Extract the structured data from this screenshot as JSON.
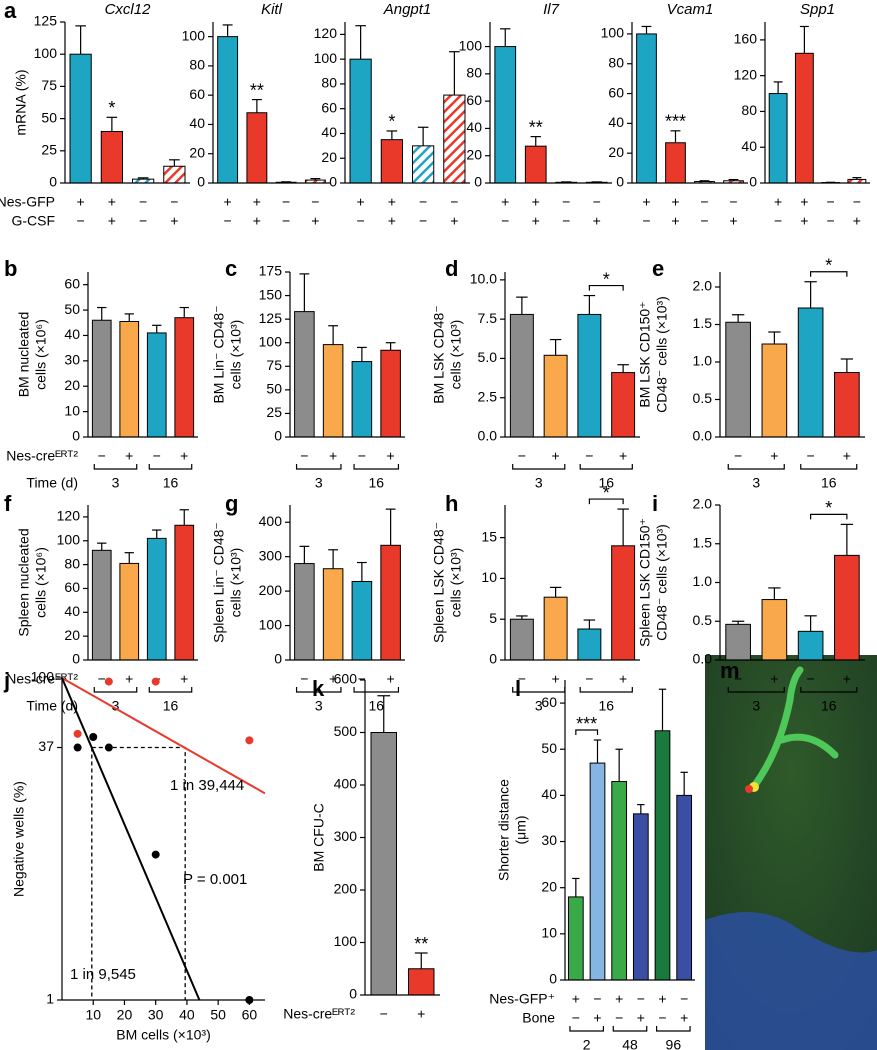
{
  "chart_data": [
    {
      "type": "bar",
      "panel": "a",
      "title": "Cxcl12",
      "ylabel": [
        "mRNA (%)"
      ],
      "values": [
        100,
        40,
        3,
        13
      ],
      "errors": [
        22,
        11,
        1,
        5
      ],
      "colors": [
        "#1ea5c4",
        "#e8392b",
        "#1ea5c4",
        "#e8392b"
      ],
      "hatch": [
        false,
        false,
        true,
        true
      ],
      "ylim": [
        0,
        125
      ],
      "yticks": [
        0,
        25,
        50,
        75,
        100,
        125
      ],
      "annotations": [
        {
          "text": "*",
          "index": 1
        }
      ],
      "rows": [
        {
          "label": "Nes-GFP",
          "signs": [
            "+",
            "+",
            "−",
            "−"
          ]
        },
        {
          "label": "G-CSF",
          "signs": [
            "−",
            "+",
            "−",
            "+"
          ]
        }
      ]
    },
    {
      "type": "bar",
      "title": "Kitl",
      "values": [
        100,
        48,
        0.5,
        2
      ],
      "errors": [
        8,
        9,
        0.3,
        1
      ],
      "colors": [
        "#1ea5c4",
        "#e8392b",
        "#1ea5c4",
        "#e8392b"
      ],
      "hatch": [
        false,
        false,
        true,
        true
      ],
      "ylim": [
        0,
        110
      ],
      "yticks": [
        0,
        20,
        40,
        60,
        80,
        100
      ],
      "annotations": [
        {
          "text": "**",
          "index": 1
        }
      ],
      "rows": [
        {
          "signs": [
            "+",
            "+",
            "−",
            "−"
          ]
        },
        {
          "signs": [
            "−",
            "+",
            "−",
            "+"
          ]
        }
      ]
    },
    {
      "type": "bar",
      "title": "Angpt1",
      "values": [
        100,
        35,
        30,
        71
      ],
      "errors": [
        27,
        7,
        15,
        35
      ],
      "colors": [
        "#1ea5c4",
        "#e8392b",
        "#1ea5c4",
        "#e8392b"
      ],
      "hatch": [
        false,
        false,
        true,
        true
      ],
      "ylim": [
        0,
        130
      ],
      "yticks": [
        0,
        20,
        40,
        60,
        80,
        100,
        120
      ],
      "annotations": [
        {
          "text": "*",
          "index": 1
        }
      ],
      "rows": [
        {
          "signs": [
            "+",
            "+",
            "−",
            "−"
          ]
        },
        {
          "signs": [
            "−",
            "+",
            "−",
            "+"
          ]
        }
      ]
    },
    {
      "type": "bar",
      "title": "Il7",
      "values": [
        100,
        27,
        0.5,
        0.5
      ],
      "errors": [
        13,
        7,
        0.3,
        0.3
      ],
      "colors": [
        "#1ea5c4",
        "#e8392b",
        "#1ea5c4",
        "#e8392b"
      ],
      "hatch": [
        false,
        false,
        true,
        true
      ],
      "ylim": [
        0,
        118
      ],
      "yticks": [
        0,
        20,
        40,
        60,
        80,
        100
      ],
      "annotations": [
        {
          "text": "**",
          "index": 1
        }
      ],
      "rows": [
        {
          "signs": [
            "+",
            "+",
            "−",
            "−"
          ]
        },
        {
          "signs": [
            "−",
            "+",
            "−",
            "+"
          ]
        }
      ]
    },
    {
      "type": "bar",
      "title": "Vcam1",
      "values": [
        100,
        27,
        1,
        1.5
      ],
      "errors": [
        5,
        8,
        0.5,
        0.8
      ],
      "colors": [
        "#1ea5c4",
        "#e8392b",
        "#1ea5c4",
        "#e8392b"
      ],
      "hatch": [
        false,
        false,
        true,
        true
      ],
      "ylim": [
        0,
        108
      ],
      "yticks": [
        0,
        20,
        40,
        60,
        80,
        100
      ],
      "annotations": [
        {
          "text": "***",
          "index": 1
        }
      ],
      "rows": [
        {
          "signs": [
            "+",
            "+",
            "−",
            "−"
          ]
        },
        {
          "signs": [
            "−",
            "+",
            "−",
            "+"
          ]
        }
      ]
    },
    {
      "type": "bar",
      "title": "Spp1",
      "values": [
        100,
        145,
        0.5,
        4
      ],
      "errors": [
        13,
        30,
        0.3,
        2
      ],
      "colors": [
        "#1ea5c4",
        "#e8392b",
        "#1ea5c4",
        "#e8392b"
      ],
      "hatch": [
        false,
        false,
        true,
        true
      ],
      "ylim": [
        0,
        180
      ],
      "yticks": [
        0,
        40,
        80,
        120,
        160
      ],
      "rows": [
        {
          "signs": [
            "+",
            "+",
            "−",
            "−"
          ]
        },
        {
          "signs": [
            "−",
            "+",
            "−",
            "+"
          ]
        }
      ]
    },
    {
      "type": "bar",
      "panel": "b",
      "ylabel": [
        "BM nucleated",
        "cells (×10⁶)"
      ],
      "values": [
        46,
        45.5,
        41,
        47
      ],
      "errors": [
        5,
        3,
        3,
        4
      ],
      "colors": [
        "#8c8c8c",
        "#f9a94b",
        "#1ea5c4",
        "#e8392b"
      ],
      "ylim": [
        0,
        65
      ],
      "yticks": [
        0,
        10,
        20,
        30,
        40,
        50,
        60
      ],
      "rows": [
        {
          "label": "Nes-creᴱᴿᵀ²",
          "signs": [
            "−",
            "+",
            "−",
            "+"
          ]
        }
      ],
      "group_title": "Time (d)",
      "groups": [
        {
          "label": "3",
          "from": 0,
          "to": 1
        },
        {
          "label": "16",
          "from": 2,
          "to": 3
        }
      ]
    },
    {
      "type": "bar",
      "panel": "c",
      "ylabel": [
        "BM Lin⁻ CD48⁻",
        "cells (×10³)"
      ],
      "values": [
        133,
        98,
        80,
        92
      ],
      "errors": [
        40,
        20,
        15,
        8
      ],
      "colors": [
        "#8c8c8c",
        "#f9a94b",
        "#1ea5c4",
        "#e8392b"
      ],
      "ylim": [
        0,
        175
      ],
      "yticks": [
        0,
        25,
        50,
        75,
        100,
        125,
        150,
        175
      ],
      "rows": [
        {
          "signs": [
            "−",
            "+",
            "−",
            "+"
          ]
        }
      ],
      "groups": [
        {
          "label": "3",
          "from": 0,
          "to": 1
        },
        {
          "label": "16",
          "from": 2,
          "to": 3
        }
      ]
    },
    {
      "type": "bar",
      "panel": "d",
      "ylabel": [
        "BM LSK CD48⁻",
        "cells (×10³)"
      ],
      "values": [
        7.8,
        5.2,
        7.8,
        4.1
      ],
      "errors": [
        1.1,
        1.0,
        1.2,
        0.5
      ],
      "colors": [
        "#8c8c8c",
        "#f9a94b",
        "#1ea5c4",
        "#e8392b"
      ],
      "ylim": [
        0,
        10.5
      ],
      "yticks": [
        {
          "value": 0,
          "label": "0.0"
        },
        2.5,
        {
          "value": 5,
          "label": "5.0"
        },
        7.5,
        {
          "value": 10,
          "label": "10.0"
        }
      ],
      "annotations": [
        {
          "text": "*",
          "from": 2,
          "to": 3
        }
      ],
      "rows": [
        {
          "signs": [
            "−",
            "+",
            "−",
            "+"
          ]
        }
      ],
      "groups": [
        {
          "label": "3",
          "from": 0,
          "to": 1
        },
        {
          "label": "16",
          "from": 2,
          "to": 3
        }
      ]
    },
    {
      "type": "bar",
      "panel": "e",
      "ylabel": [
        "BM LSK CD150⁺",
        "CD48⁻ cells (×10³)"
      ],
      "values": [
        1.53,
        1.24,
        1.72,
        0.86
      ],
      "errors": [
        0.1,
        0.16,
        0.35,
        0.18
      ],
      "colors": [
        "#8c8c8c",
        "#f9a94b",
        "#1ea5c4",
        "#e8392b"
      ],
      "ylim": [
        0,
        2.2
      ],
      "yticks": [
        {
          "value": 0,
          "label": "0.0"
        },
        0.5,
        {
          "value": 1,
          "label": "1.0"
        },
        1.5,
        {
          "value": 2,
          "label": "2.0"
        }
      ],
      "annotations": [
        {
          "text": "*",
          "from": 2,
          "to": 3
        }
      ],
      "rows": [
        {
          "signs": [
            "−",
            "+",
            "−",
            "+"
          ]
        }
      ],
      "groups": [
        {
          "label": "3",
          "from": 0,
          "to": 1
        },
        {
          "label": "16",
          "from": 2,
          "to": 3
        }
      ]
    },
    {
      "type": "bar",
      "panel": "f",
      "ylabel": [
        "Spleen nucleated",
        "cells (×10⁶)"
      ],
      "values": [
        92,
        81,
        102,
        113
      ],
      "errors": [
        6,
        9,
        7,
        13
      ],
      "colors": [
        "#8c8c8c",
        "#f9a94b",
        "#1ea5c4",
        "#e8392b"
      ],
      "ylim": [
        0,
        130
      ],
      "yticks": [
        0,
        20,
        40,
        60,
        80,
        100,
        120
      ],
      "rows": [
        {
          "label": "Nes-creᴱᴿᵀ²",
          "signs": [
            "−",
            "+",
            "−",
            "+"
          ]
        }
      ],
      "group_title": "Time (d)",
      "groups": [
        {
          "label": "3",
          "from": 0,
          "to": 1
        },
        {
          "label": "16",
          "from": 2,
          "to": 3
        }
      ]
    },
    {
      "type": "bar",
      "panel": "g",
      "ylabel": [
        "Spleen Lin⁻ CD48⁻",
        "cells (×10³)"
      ],
      "values": [
        280,
        265,
        228,
        333
      ],
      "errors": [
        50,
        55,
        55,
        105
      ],
      "colors": [
        "#8c8c8c",
        "#f9a94b",
        "#1ea5c4",
        "#e8392b"
      ],
      "ylim": [
        0,
        450
      ],
      "yticks": [
        0,
        100,
        200,
        300,
        400
      ],
      "rows": [
        {
          "signs": [
            "−",
            "+",
            "−",
            "+"
          ]
        }
      ],
      "groups": [
        {
          "label": "3",
          "from": 0,
          "to": 1
        },
        {
          "label": "16",
          "from": 2,
          "to": 3
        }
      ]
    },
    {
      "type": "bar",
      "panel": "h",
      "ylabel": [
        "Spleen LSK CD48⁻",
        "cells (×10³)"
      ],
      "values": [
        5,
        7.7,
        3.8,
        14
      ],
      "errors": [
        0.4,
        1.2,
        1.1,
        4.5
      ],
      "colors": [
        "#8c8c8c",
        "#f9a94b",
        "#1ea5c4",
        "#e8392b"
      ],
      "ylim": [
        0,
        19
      ],
      "yticks": [
        0,
        5,
        10,
        15
      ],
      "annotations": [
        {
          "text": "*",
          "from": 2,
          "to": 3
        }
      ],
      "rows": [
        {
          "signs": [
            "−",
            "+",
            "−",
            "+"
          ]
        }
      ],
      "groups": [
        {
          "label": "3",
          "from": 0,
          "to": 1
        },
        {
          "label": "16",
          "from": 2,
          "to": 3
        }
      ]
    },
    {
      "type": "bar",
      "panel": "i",
      "ylabel": [
        "Spleen LSK CD150⁺",
        "CD48⁻ cells (×10³)"
      ],
      "values": [
        0.46,
        0.78,
        0.37,
        1.35
      ],
      "errors": [
        0.04,
        0.15,
        0.2,
        0.4
      ],
      "colors": [
        "#8c8c8c",
        "#f9a94b",
        "#1ea5c4",
        "#e8392b"
      ],
      "ylim": [
        0,
        2.0
      ],
      "yticks": [
        {
          "value": 0,
          "label": "0.0"
        },
        0.5,
        {
          "value": 1,
          "label": "1.0"
        },
        1.5,
        {
          "value": 2,
          "label": "2.0"
        }
      ],
      "annotations": [
        {
          "text": "*",
          "from": 2,
          "to": 3
        }
      ],
      "rows": [
        {
          "signs": [
            "−",
            "+",
            "−",
            "+"
          ]
        }
      ],
      "groups": [
        {
          "label": "3",
          "from": 0,
          "to": 1
        },
        {
          "label": "16",
          "from": 2,
          "to": 3
        }
      ]
    },
    {
      "type": "scatter",
      "panel": "j",
      "xlabel": "BM cells (×10³)",
      "ylabel": [
        "Negative wells (%)"
      ],
      "log_y": true,
      "xlim": [
        0,
        65
      ],
      "ylim": [
        1,
        100
      ],
      "xticks": [
        10,
        20,
        30,
        40,
        50,
        60
      ],
      "yticks": [
        1,
        37,
        100
      ],
      "series": [
        {
          "color": "#e8392b",
          "x": [
            5,
            15,
            30,
            60
          ],
          "values": [
            45,
            95,
            95,
            41
          ]
        },
        {
          "color": "#000000",
          "x": [
            5,
            10,
            15,
            30,
            60
          ],
          "values": [
            37,
            43,
            37,
            8,
            1
          ]
        }
      ],
      "lines": [
        {
          "label": "1 in 39,444",
          "color": "#e8392b",
          "x": [
            0,
            65
          ],
          "y": [
            100,
            19.2
          ]
        },
        {
          "label": "1 in 9,545",
          "color": "#000000",
          "x": [
            0,
            44
          ],
          "y": [
            100,
            1
          ]
        }
      ],
      "guides": [
        {
          "x": [
            9.545,
            39.444,
            39.444
          ],
          "y": [
            37,
            37,
            1
          ]
        },
        {
          "x": [
            9.545,
            9.545
          ],
          "y": [
            37,
            1
          ]
        }
      ],
      "annotation": "P = 0.001"
    },
    {
      "type": "bar",
      "panel": "k",
      "ylabel": [
        "BM CFU-C"
      ],
      "values": [
        500,
        50
      ],
      "errors": [
        70,
        30
      ],
      "colors": [
        "#8c8c8c",
        "#e8392b"
      ],
      "ylim": [
        0,
        600
      ],
      "yticks": [
        0,
        100,
        200,
        300,
        400,
        500,
        600
      ],
      "annotations": [
        {
          "text": "**",
          "index": 1
        }
      ],
      "rows": [
        {
          "label": "Nes-creᴱᴿᵀ²",
          "signs": [
            "−",
            "+"
          ]
        }
      ]
    },
    {
      "type": "bar",
      "panel": "l",
      "ylabel": [
        "Shorter distance",
        "(μm)"
      ],
      "values": [
        18,
        47,
        43,
        36,
        54,
        40
      ],
      "errors": [
        4,
        5,
        7,
        2,
        9,
        5
      ],
      "colors": [
        "#3aaa48",
        "#85b5e3",
        "#3aaa48",
        "#3a4ea3",
        "#1a7a3c",
        "#3a4ea3"
      ],
      "ylim": [
        0,
        65
      ],
      "yticks": [
        0,
        10,
        20,
        30,
        40,
        50,
        60
      ],
      "annotations": [
        {
          "text": "***",
          "from": 0,
          "to": 1
        }
      ],
      "rows": [
        {
          "label": "Nes-GFP⁺",
          "signs": [
            "+",
            "−",
            "+",
            "−",
            "+",
            "−"
          ]
        },
        {
          "label": "Bone",
          "signs": [
            "−",
            "+",
            "−",
            "+",
            "−",
            "+"
          ]
        }
      ],
      "groups": [
        {
          "label": "2",
          "from": 0,
          "to": 1
        },
        {
          "label": "48",
          "from": 2,
          "to": 3
        },
        {
          "label": "96",
          "from": 4,
          "to": 5
        }
      ]
    },
    {
      "type": "image",
      "panel": "m"
    }
  ]
}
